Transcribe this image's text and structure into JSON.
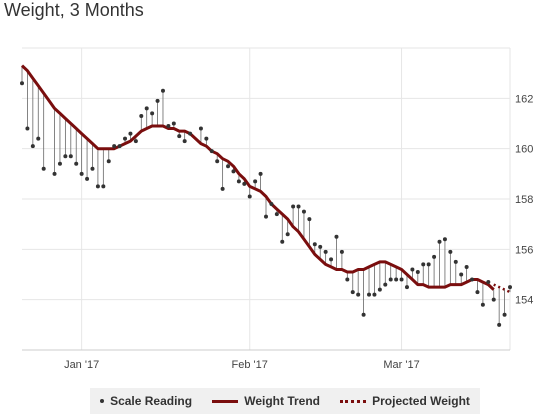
{
  "title": "Weight, 3 Months",
  "chart_data": {
    "type": "line",
    "title": "Weight, 3 Months",
    "xlabel": "",
    "ylabel": "",
    "x_range": [
      0,
      90
    ],
    "ylim": [
      152,
      164
    ],
    "x_ticks": [
      {
        "x": 11,
        "label": "Jan '17"
      },
      {
        "x": 42,
        "label": "Feb '17"
      },
      {
        "x": 70,
        "label": "Mar '17"
      }
    ],
    "y_ticks": [
      154,
      156,
      158,
      160,
      162
    ],
    "grid": true,
    "legend_position": "bottom",
    "colors": {
      "trend": "#7a0e0e",
      "readings": "#333333",
      "stems": "#666666",
      "grid": "#e6e6e6"
    },
    "series": [
      {
        "name": "Scale Reading",
        "type": "scatter",
        "x": [
          0,
          1,
          2,
          3,
          4,
          6,
          7,
          8,
          9,
          10,
          11,
          12,
          13,
          14,
          15,
          16,
          17,
          18,
          19,
          20,
          21,
          22,
          23,
          24,
          25,
          26,
          27,
          28,
          29,
          30,
          31,
          33,
          34,
          35,
          36,
          37,
          38,
          39,
          40,
          41,
          42,
          43,
          44,
          45,
          46,
          47,
          48,
          49,
          50,
          51,
          52,
          53,
          54,
          55,
          56,
          57,
          58,
          59,
          60,
          61,
          62,
          63,
          64,
          65,
          66,
          67,
          68,
          69,
          70,
          71,
          72,
          73,
          74,
          75,
          76,
          77,
          78,
          79,
          80,
          81,
          82,
          83,
          84,
          85,
          86,
          87,
          88,
          89,
          90
        ],
        "y": [
          162.6,
          160.8,
          160.1,
          160.4,
          159.2,
          159.0,
          159.4,
          159.7,
          159.7,
          159.4,
          159.0,
          158.8,
          159.2,
          158.5,
          158.5,
          159.5,
          160.1,
          160.1,
          160.4,
          160.6,
          160.3,
          161.3,
          161.6,
          161.4,
          161.9,
          162.3,
          160.9,
          161.0,
          160.5,
          160.3,
          160.6,
          160.8,
          160.4,
          159.9,
          159.5,
          158.4,
          159.3,
          159.1,
          158.7,
          158.6,
          158.1,
          158.7,
          159.0,
          157.3,
          157.8,
          157.4,
          156.3,
          156.6,
          157.7,
          157.7,
          157.5,
          157.2,
          156.2,
          156.1,
          155.9,
          155.6,
          156.5,
          155.9,
          154.8,
          154.3,
          154.2,
          153.4,
          154.2,
          154.2,
          154.4,
          154.6,
          154.8,
          154.8,
          154.8,
          154.5,
          155.2,
          155.1,
          155.4,
          155.4,
          155.7,
          156.3,
          156.4,
          155.9,
          155.5,
          155.0,
          155.3,
          154.8,
          154.3,
          153.8,
          154.7,
          154.0,
          153.0,
          153.4,
          154.5
        ]
      },
      {
        "name": "Weight Trend",
        "type": "line",
        "x": [
          0,
          1,
          2,
          3,
          4,
          5,
          6,
          7,
          8,
          9,
          10,
          11,
          12,
          13,
          14,
          15,
          16,
          17,
          18,
          19,
          20,
          21,
          22,
          23,
          24,
          25,
          26,
          27,
          28,
          29,
          30,
          31,
          32,
          33,
          34,
          35,
          36,
          37,
          38,
          39,
          40,
          41,
          42,
          43,
          44,
          45,
          46,
          47,
          48,
          49,
          50,
          51,
          52,
          53,
          54,
          55,
          56,
          57,
          58,
          59,
          60,
          61,
          62,
          63,
          64,
          65,
          66,
          67,
          68,
          69,
          70,
          71,
          72,
          73,
          74,
          75,
          76,
          77,
          78,
          79,
          80,
          81,
          82,
          83,
          84,
          85,
          86,
          87
        ],
        "y": [
          163.3,
          163.1,
          162.8,
          162.5,
          162.2,
          161.9,
          161.6,
          161.4,
          161.2,
          161.0,
          160.8,
          160.6,
          160.4,
          160.2,
          160.0,
          160.0,
          160.0,
          160.0,
          160.1,
          160.2,
          160.3,
          160.5,
          160.7,
          160.8,
          160.9,
          160.9,
          160.9,
          160.8,
          160.8,
          160.7,
          160.7,
          160.6,
          160.4,
          160.2,
          160.1,
          159.9,
          159.8,
          159.6,
          159.5,
          159.3,
          159.0,
          158.8,
          158.5,
          158.4,
          158.3,
          158.1,
          157.8,
          157.6,
          157.4,
          157.2,
          156.9,
          156.7,
          156.4,
          156.1,
          155.8,
          155.6,
          155.4,
          155.3,
          155.2,
          155.2,
          155.1,
          155.1,
          155.2,
          155.2,
          155.3,
          155.4,
          155.5,
          155.5,
          155.4,
          155.3,
          155.2,
          155.0,
          154.8,
          154.6,
          154.6,
          154.5,
          154.5,
          154.5,
          154.5,
          154.6,
          154.6,
          154.6,
          154.7,
          154.8,
          154.8,
          154.7,
          154.6,
          154.4
        ]
      },
      {
        "name": "Projected Weight",
        "type": "line",
        "style": "dotted",
        "x": [
          87,
          88,
          89,
          90
        ],
        "y": [
          154.6,
          154.5,
          154.4,
          154.3
        ]
      }
    ]
  },
  "legend": {
    "scale_reading": "Scale Reading",
    "weight_trend": "Weight Trend",
    "projected_weight": "Projected Weight"
  }
}
